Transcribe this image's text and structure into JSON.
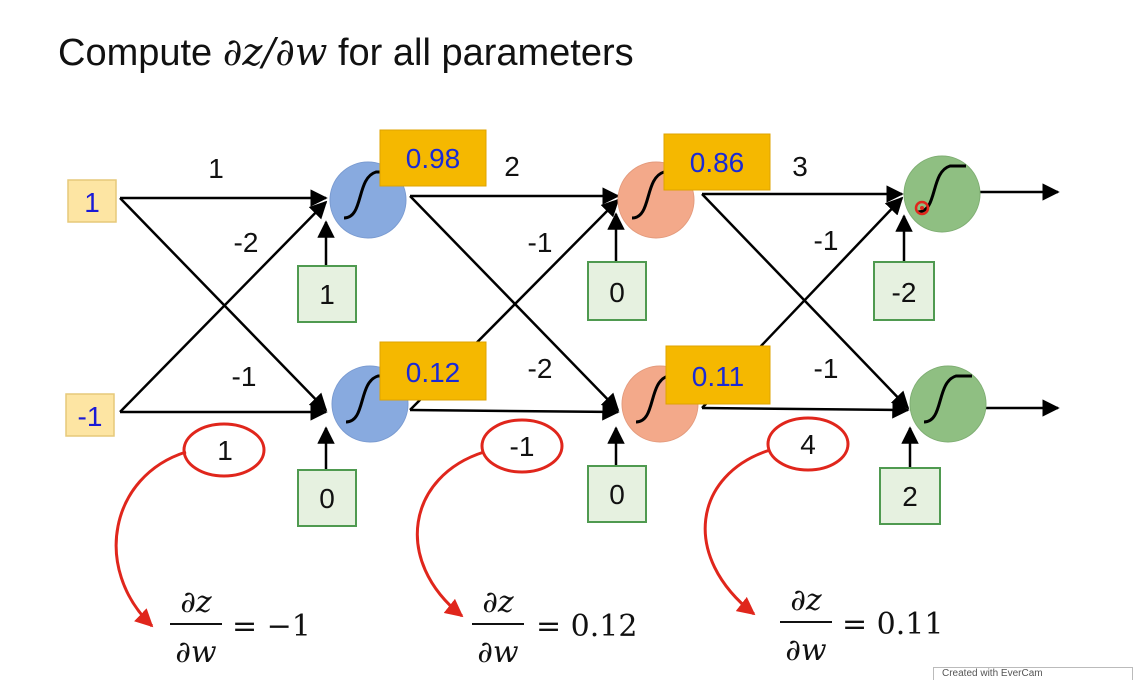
{
  "title": {
    "prefix": "Compute ",
    "math": "∂z/∂w",
    "suffix": " for all parameters"
  },
  "inputs": [
    "1",
    "-1"
  ],
  "layer_weight_labels": [
    {
      "top": "1",
      "cross_top": "-2",
      "cross_bottom": "-1",
      "bottom": "1"
    },
    {
      "top": "2",
      "cross_top": "-1",
      "cross_bottom": "-2",
      "bottom": "-1"
    },
    {
      "top": "3",
      "cross_top": "-1",
      "cross_bottom": "-1",
      "bottom": "4"
    }
  ],
  "biases": [
    [
      "1",
      "0"
    ],
    [
      "0",
      "0"
    ],
    [
      "-2",
      "2"
    ]
  ],
  "activations": [
    [
      "0.98",
      "0.12"
    ],
    [
      "0.86",
      "0.11"
    ]
  ],
  "derivatives": [
    {
      "numerator": "∂z",
      "denominator": "∂w",
      "value": "= −1"
    },
    {
      "numerator": "∂z",
      "denominator": "∂w",
      "value": "= 0.12"
    },
    {
      "numerator": "∂z",
      "denominator": "∂w",
      "value": "= 0.11"
    }
  ],
  "watermark": "Created with EverCam",
  "colors": {
    "input_fill": "#fde5a3",
    "input_text": "#1a1ad6",
    "bias_fill": "#e6f1e0",
    "bias_border": "#4f9a50",
    "act_fill": "#f5b800",
    "act_text": "#1a2ad6",
    "layer1": "#88aadf",
    "layer2": "#f3a98a",
    "layer3": "#8fbf82",
    "highlight": "#e0261c"
  }
}
